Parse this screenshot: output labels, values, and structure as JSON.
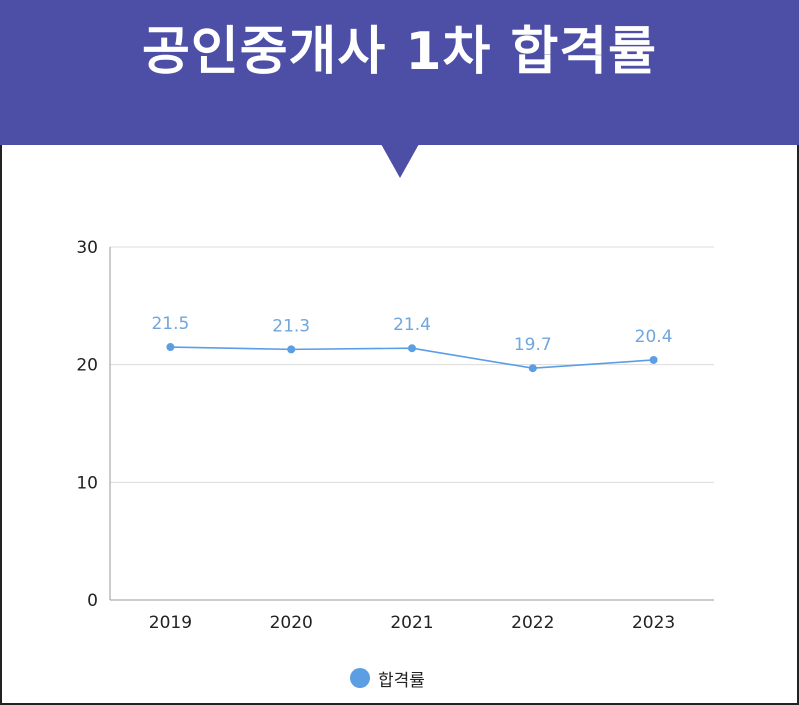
{
  "header": {
    "title": "공인중개사 1차 합격률",
    "background": "#4d4fa6",
    "text_color": "#ffffff"
  },
  "chart_data": {
    "type": "line",
    "title": "공인중개사 1차 합격률",
    "xlabel": "",
    "ylabel": "",
    "categories": [
      "2019",
      "2020",
      "2021",
      "2022",
      "2023"
    ],
    "series": [
      {
        "name": "합격률",
        "values": [
          21.5,
          21.3,
          21.4,
          19.7,
          20.4
        ],
        "color": "#5b9ee4"
      }
    ],
    "y_ticks": [
      0,
      10,
      20,
      30
    ],
    "ylim": [
      0,
      30
    ],
    "grid": true,
    "legend_position": "bottom",
    "data_labels": [
      "21.5",
      "21.3",
      "21.4",
      "19.7",
      "20.4"
    ],
    "colors": {
      "grid": "#dcdcdc",
      "axis": "#9a9a9a",
      "label": "#6fa6dc"
    }
  }
}
